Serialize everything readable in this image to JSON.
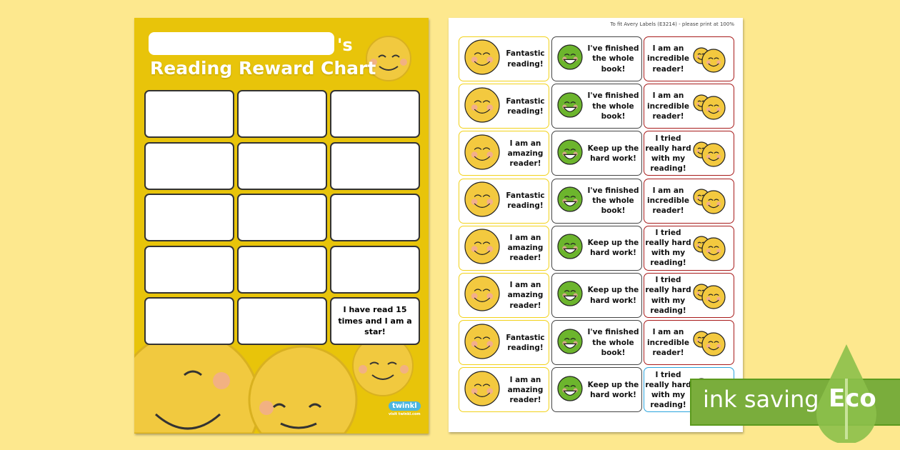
{
  "chart": {
    "name_suffix": "'s",
    "title": "Reading Reward Chart",
    "final_cell_text": "I have read 15 times and I am a star!",
    "logo": "twinkl",
    "logo_url": "visit twinkl.com"
  },
  "labels_sheet": {
    "note": "To fit Avery Labels (E3214) - please print at 100%",
    "rows": [
      [
        "Fantastic reading!",
        "I've finished the whole book!",
        "I am an incredible reader!"
      ],
      [
        "Fantastic reading!",
        "I've finished the whole book!",
        "I am an incredible reader!"
      ],
      [
        "I am an amazing reader!",
        "Keep up the hard work!",
        "I tried really hard with my reading!"
      ],
      [
        "Fantastic reading!",
        "I've finished the whole book!",
        "I am an incredible reader!"
      ],
      [
        "I am an amazing reader!",
        "Keep up the hard work!",
        "I tried really hard with my reading!"
      ],
      [
        "I am an amazing reader!",
        "Keep up the hard work!",
        "I tried really hard with my reading!"
      ],
      [
        "Fantastic reading!",
        "I've finished the whole book!",
        "I am an incredible reader!"
      ],
      [
        "I am an amazing reader!",
        "Keep up the hard work!",
        "I tried really hard with my reading!"
      ]
    ]
  },
  "badge": {
    "text": "ink saving",
    "eco": "Eco"
  },
  "colors": {
    "background": "#fde88e",
    "chart_yellow": "#e8c40a",
    "smiley": "#f3c93f",
    "green_smiley": "#6cb52d",
    "border_yellow": "#f2d21a",
    "border_grey": "#444444",
    "border_red": "#a81c1c",
    "border_blue": "#2aa4dd",
    "eco_green": "#7aad3c"
  }
}
